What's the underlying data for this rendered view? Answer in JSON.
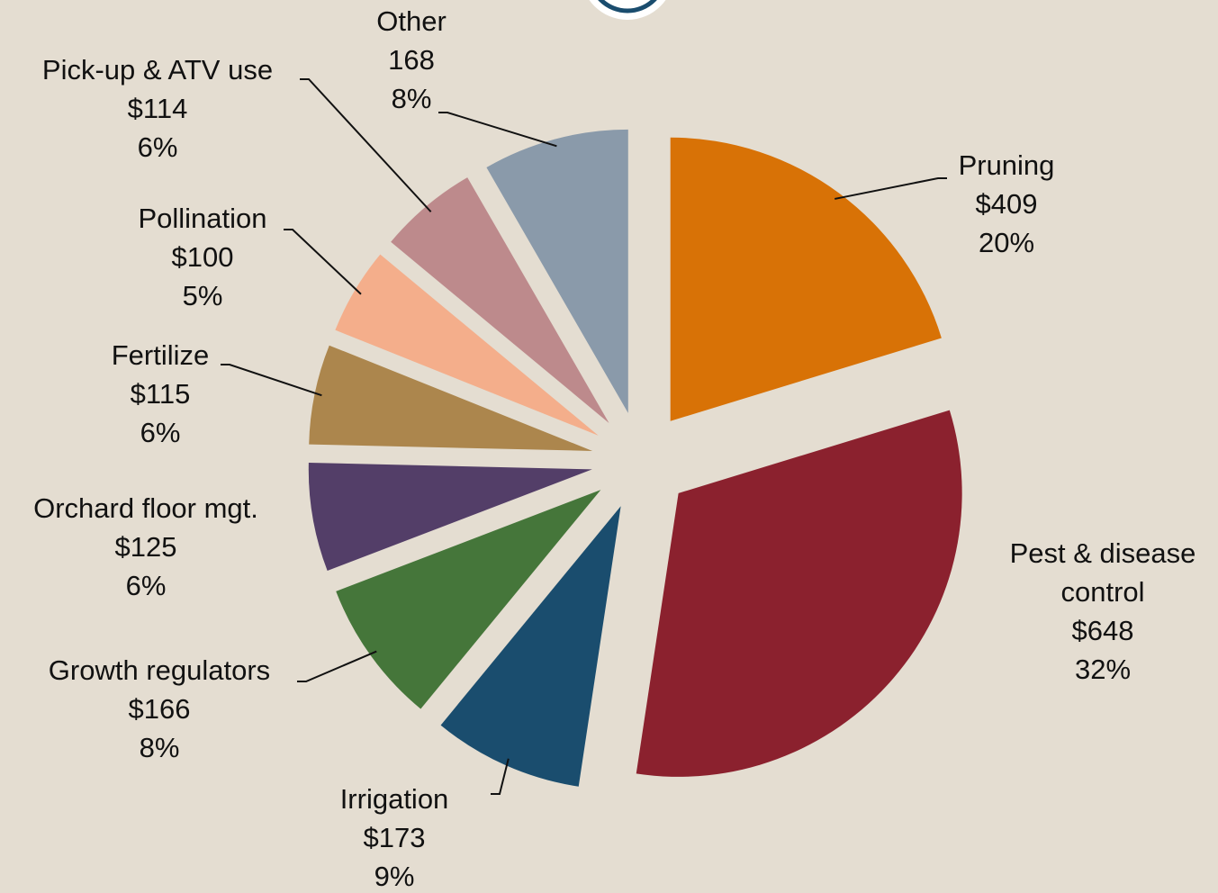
{
  "chart_data": {
    "type": "pie",
    "categories": [
      "Pruning",
      "Pest & disease control",
      "Irrigation",
      "Growth regulators",
      "Orchard floor mgt.",
      "Fertilize",
      "Pollination",
      "Pick-up & ATV use",
      "Other"
    ],
    "values": [
      409,
      648,
      173,
      166,
      125,
      115,
      100,
      114,
      168
    ],
    "value_labels": [
      "$409",
      "$648",
      "$173",
      "$166",
      "$125",
      "$115",
      "$100",
      "$114",
      "168"
    ],
    "percent": [
      20,
      32,
      9,
      8,
      6,
      6,
      5,
      6,
      8
    ],
    "percent_labels": [
      "20%",
      "32%",
      "9%",
      "8%",
      "6%",
      "6%",
      "5%",
      "6%",
      "8%"
    ],
    "colors": [
      "#d87206",
      "#8b212e",
      "#1a4d6e",
      "#45763a",
      "#533e68",
      "#ac864d",
      "#f4ae8b",
      "#bd8a8c",
      "#8a9aaa"
    ],
    "exploded": true
  }
}
